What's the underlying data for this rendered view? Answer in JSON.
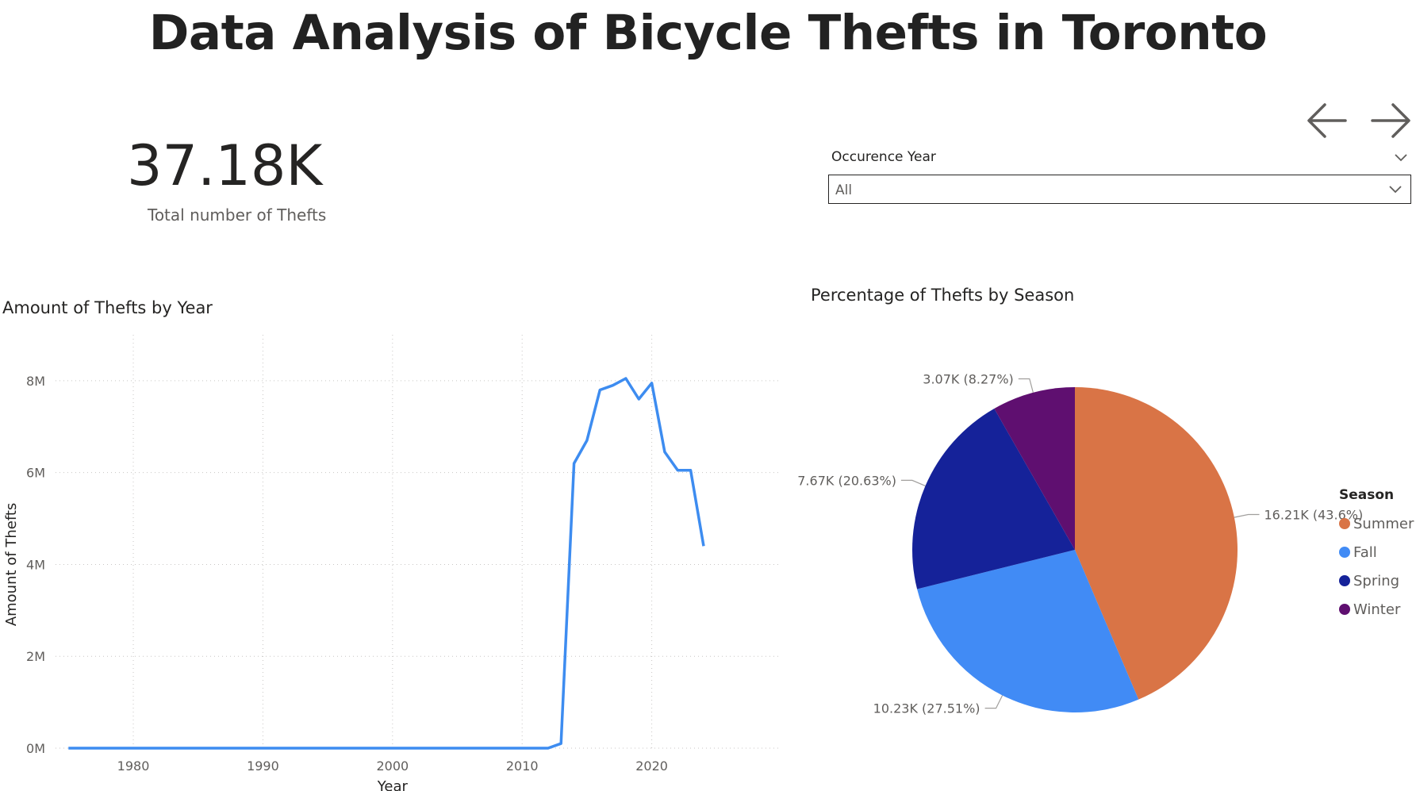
{
  "header": {
    "title": "Data Analysis of Bicycle Thefts in Toronto"
  },
  "kpi": {
    "value": "37.18K",
    "label": "Total number of Thefts"
  },
  "navigation": {
    "back_icon": "arrow-left-icon",
    "forward_icon": "arrow-right-icon"
  },
  "slicer": {
    "label": "Occurence Year",
    "selected": "All"
  },
  "chart_data": [
    {
      "type": "line",
      "title": "Amount of Thefts by Year",
      "xlabel": "Year",
      "ylabel": "Amount of Thefts",
      "x": [
        1975,
        1976,
        1977,
        1978,
        1979,
        1980,
        1981,
        1982,
        1983,
        1984,
        1985,
        1986,
        1987,
        1988,
        1989,
        1990,
        1991,
        1992,
        1993,
        1994,
        1995,
        1996,
        1997,
        1998,
        1999,
        2000,
        2001,
        2002,
        2003,
        2004,
        2005,
        2006,
        2007,
        2008,
        2009,
        2010,
        2011,
        2012,
        2013,
        2014,
        2015,
        2016,
        2017,
        2018,
        2019,
        2020,
        2021,
        2022,
        2023,
        2024
      ],
      "values": [
        0,
        0,
        0,
        0,
        0,
        0,
        0,
        0,
        0,
        0,
        0,
        0,
        0,
        0,
        0,
        0,
        0,
        0,
        0,
        0,
        0,
        0,
        0,
        0,
        0,
        0,
        0,
        0,
        0,
        0,
        0,
        0,
        0,
        0,
        0,
        0,
        0,
        0,
        0.1,
        6.2,
        6.7,
        7.8,
        7.9,
        8.05,
        7.6,
        7.95,
        6.45,
        6.05,
        6.05,
        4.4
      ],
      "xticks": [
        "1980",
        "1990",
        "2000",
        "2010",
        "2020"
      ],
      "yticks": [
        "0M",
        "2M",
        "4M",
        "6M",
        "8M"
      ],
      "ylim": [
        0,
        9
      ],
      "xlim": [
        1974,
        2030
      ],
      "grid": true,
      "color": "#3d8cf0"
    },
    {
      "type": "pie",
      "title": "Percentage of Thefts by Season",
      "legend_title": "Season",
      "legend_position": "right",
      "slices": [
        {
          "name": "Summer",
          "value": 16.21,
          "label": "16.21K (43.6%)",
          "color": "#d97446"
        },
        {
          "name": "Fall",
          "value": 10.23,
          "label": "10.23K (27.51%)",
          "color": "#418bf5"
        },
        {
          "name": "Spring",
          "value": 7.67,
          "label": "7.67K (20.63%)",
          "color": "#152299"
        },
        {
          "name": "Winter",
          "value": 3.07,
          "label": "3.07K (8.27%)",
          "color": "#5f0f70"
        }
      ]
    }
  ]
}
